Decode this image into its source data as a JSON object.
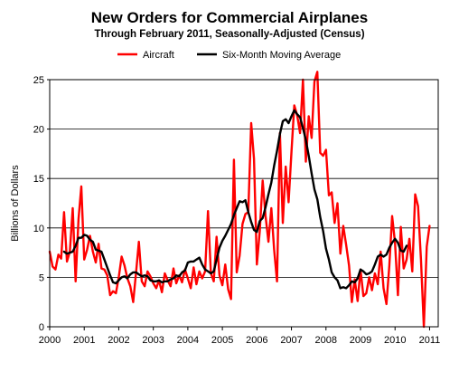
{
  "chart_data": {
    "type": "line",
    "title": "New Orders for Commercial Airplanes",
    "subtitle": "Through February 2011, Seasonally-Adjusted (Census)",
    "xlabel": "",
    "ylabel": "Billions of Dollars",
    "xlim": [
      "2000-01",
      "2011-04"
    ],
    "ylim": [
      0,
      25
    ],
    "yticks": [
      0,
      5,
      10,
      15,
      20,
      25
    ],
    "xticks": [
      "2000",
      "2001",
      "2002",
      "2003",
      "2004",
      "2005",
      "2006",
      "2007",
      "2008",
      "2009",
      "2010",
      "2011"
    ],
    "grid": "horizontal",
    "legend": "top-center",
    "colors": {
      "aircraft": "#ff0000",
      "average": "#000000",
      "grid": "#000000"
    },
    "series": [
      {
        "name": "Aircraft",
        "start": "2000-01",
        "frequency": "monthly",
        "values": [
          7.6,
          6.1,
          5.8,
          7.3,
          6.9,
          11.6,
          6.6,
          7.6,
          12.0,
          4.6,
          10.9,
          14.2,
          6.8,
          7.8,
          9.2,
          7.6,
          6.5,
          8.4,
          5.9,
          5.8,
          5.2,
          3.2,
          3.6,
          3.4,
          5.0,
          7.1,
          6.2,
          4.9,
          4.1,
          2.5,
          5.5,
          8.6,
          4.6,
          4.1,
          5.6,
          5.1,
          4.4,
          3.9,
          4.7,
          3.5,
          5.4,
          4.7,
          4.1,
          5.9,
          4.4,
          5.2,
          4.5,
          5.8,
          4.9,
          3.9,
          6.0,
          4.3,
          5.6,
          4.9,
          5.6,
          11.7,
          5.4,
          4.6,
          9.1,
          5.2,
          4.2,
          6.3,
          3.8,
          2.8,
          16.9,
          5.5,
          7.2,
          10.4,
          11.4,
          11.6,
          20.6,
          17.0,
          6.3,
          9.7,
          14.8,
          11.2,
          8.6,
          12.0,
          7.8,
          4.6,
          19.6,
          10.5,
          16.2,
          12.6,
          17.7,
          22.4,
          21.4,
          19.6,
          25.0,
          16.7,
          21.3,
          19.1,
          24.8,
          25.8,
          17.6,
          17.3,
          17.9,
          13.3,
          13.6,
          10.5,
          12.5,
          7.4,
          10.2,
          8.3,
          6.2,
          2.5,
          4.8,
          2.6,
          5.8,
          3.1,
          3.4,
          5.0,
          3.7,
          5.4,
          4.3,
          7.6,
          3.9,
          2.3,
          6.2,
          11.2,
          8.5,
          3.2,
          10.1,
          5.9,
          6.8,
          8.9,
          5.6,
          13.4,
          12.2,
          6.8,
          0.0,
          8.1,
          10.2
        ]
      },
      {
        "name": "Six-Month Moving Average",
        "start": "2000-06",
        "frequency": "monthly",
        "values": [
          7.6,
          7.4,
          7.5,
          7.6,
          8.2,
          9.0,
          9.0,
          9.3,
          9.2,
          8.8,
          8.6,
          7.8,
          7.7,
          7.6,
          6.8,
          6.0,
          5.2,
          4.5,
          4.4,
          4.7,
          5.0,
          5.1,
          4.9,
          5.3,
          5.5,
          5.5,
          5.3,
          5.1,
          5.2,
          5.1,
          4.7,
          4.6,
          4.6,
          4.7,
          4.5,
          4.6,
          4.6,
          4.8,
          4.9,
          5.2,
          5.1,
          5.5,
          5.7,
          6.5,
          6.6,
          6.6,
          6.8,
          7.0,
          6.3,
          5.8,
          5.6,
          5.4,
          5.6,
          6.8,
          8.0,
          8.7,
          9.2,
          9.8,
          10.4,
          11.3,
          12.0,
          12.7,
          12.6,
          12.8,
          11.6,
          10.6,
          9.8,
          9.6,
          10.7,
          11.0,
          12.1,
          13.4,
          14.6,
          16.3,
          17.8,
          19.5,
          20.8,
          21.0,
          20.6,
          21.3,
          21.9,
          21.5,
          21.2,
          20.1,
          18.9,
          17.3,
          15.5,
          13.9,
          12.9,
          11.1,
          9.7,
          7.9,
          6.8,
          5.5,
          5.0,
          4.7,
          3.9,
          4.0,
          3.9,
          4.2,
          4.6,
          4.5,
          4.9,
          5.8,
          5.6,
          5.3,
          5.4,
          5.6,
          6.3,
          7.1,
          7.3,
          7.1,
          7.3,
          8.0,
          8.5,
          8.9,
          8.5,
          7.7,
          7.6,
          8.2
        ]
      }
    ]
  }
}
